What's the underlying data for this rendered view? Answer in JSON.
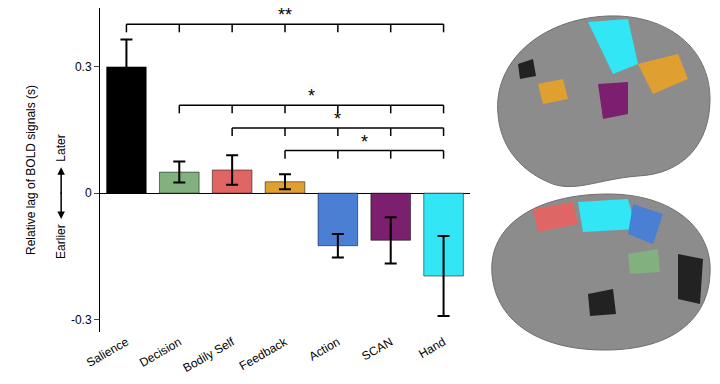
{
  "chart_data": {
    "type": "bar",
    "categories": [
      "Salience",
      "Decision",
      "Bodily Self",
      "Feedback",
      "Action",
      "SCAN",
      "Hand"
    ],
    "values": [
      0.3,
      0.05,
      0.055,
      0.027,
      -0.125,
      -0.112,
      -0.197
    ],
    "errors": [
      0.065,
      0.025,
      0.035,
      0.018,
      0.028,
      0.055,
      0.095
    ],
    "colors": [
      "#000000",
      "#82b07e",
      "#e06666",
      "#e0a030",
      "#4a7fd4",
      "#7b1f6e",
      "#33e6f5"
    ],
    "y_label": "Relative lag of BOLD signals (s)",
    "y_direction_labels": {
      "upper": "Later",
      "lower": "Earlier"
    },
    "ylim": [
      -0.33,
      0.44
    ],
    "yticks": [
      -0.3,
      0,
      0.3
    ],
    "grid": false,
    "comparisons": [
      {
        "from": "Salience",
        "to": "Hand",
        "label": "**"
      },
      {
        "from": "Decision",
        "to": "Hand",
        "label": "*"
      },
      {
        "from": "Bodily Self",
        "to": "Hand",
        "label": "*"
      },
      {
        "from": "Feedback",
        "to": "Hand",
        "label": "*"
      }
    ]
  }
}
